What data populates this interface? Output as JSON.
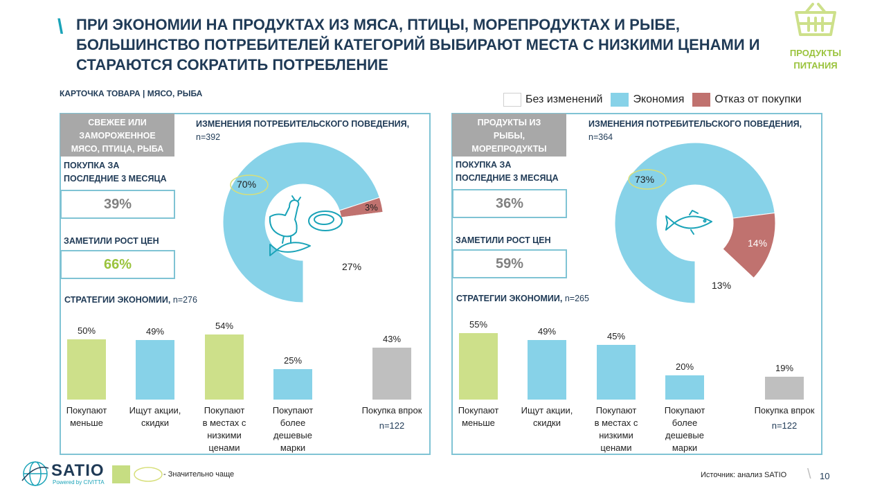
{
  "header": {
    "title_lines": [
      "ПРИ ЭКОНОМИИ НА ПРОДУКТАХ ИЗ МЯСА, ПТИЦЫ, МОРЕПРОДУКТАХ И РЫБЕ,",
      "БОЛЬШИНСТВО ПОТРЕБИТЕЛЕЙ КАТЕГОРИЙ ВЫБИРАЮТ МЕСТА С НИЗКИМИ ЦЕНАМИ И",
      "СТАРАЮТСЯ СОКРАТИТЬ ПОТРЕБЛЕНИЕ"
    ],
    "category_line1": "ПРОДУКТЫ",
    "category_line2": "ПИТАНИЯ",
    "subtitle": "КАРТОЧКА ТОВАРА | МЯСО, РЫБА"
  },
  "colors": {
    "accent": "#1aa3b8",
    "green": "#cde08a",
    "blue": "#87d2e8",
    "red": "#c0726f",
    "gray": "#bfbfbf",
    "title": "#1f3a56"
  },
  "legend": {
    "no_change": "Без изменений",
    "economy": "Экономия",
    "refuse": "Отказ от покупки"
  },
  "panels": [
    {
      "category_lines": [
        "СВЕЖЕЕ ИЛИ",
        "ЗАМОРОЖЕННОЕ",
        "МЯСО, ПТИЦА, РЫБА"
      ],
      "purchase_label_lines": [
        "ПОКУПКА ЗА",
        "ПОСЛЕДНИЕ 3 МЕСЯЦА"
      ],
      "purchase_value": "39%",
      "price_label": "ЗАМЕТИЛИ РОСТ ЦЕН",
      "price_value": "66%",
      "pie_title": "ИЗМЕНЕНИЯ ПОТРЕБИТЕЛЬСКОГО ПОВЕДЕНИЯ,",
      "pie_n": "n=392",
      "pie_labels": {
        "economy": "70%",
        "refuse": "3%",
        "no_change": "27%"
      },
      "strategies_title": "СТРАТЕГИИ ЭКОНОМИИ,",
      "strategies_n": "n=276",
      "bar_labels": [
        "50%",
        "49%",
        "54%",
        "25%",
        "43%"
      ],
      "bar_cats": [
        [
          "Покупают",
          "меньше"
        ],
        [
          "Ищут акции,",
          "скидки"
        ],
        [
          "Покупают",
          "в местах с",
          "низкими",
          "ценами"
        ],
        [
          "Покупают",
          "более",
          "дешевые",
          "марки"
        ],
        [
          "Покупка впрок"
        ]
      ],
      "extra_n": "n=122"
    },
    {
      "category_lines": [
        "ПРОДУКТЫ ИЗ",
        "РЫБЫ,",
        "МОРЕПРОДУКТЫ"
      ],
      "purchase_label_lines": [
        "ПОКУПКА ЗА",
        "ПОСЛЕДНИЕ 3 МЕСЯЦА"
      ],
      "purchase_value": "36%",
      "price_label": "ЗАМЕТИЛИ РОСТ ЦЕН",
      "price_value": "59%",
      "pie_title": "ИЗМЕНЕНИЯ ПОТРЕБИТЕЛЬСКОГО ПОВЕДЕНИЯ,",
      "pie_n": "n=364",
      "pie_labels": {
        "economy": "73%",
        "refuse": "14%",
        "no_change": "13%"
      },
      "strategies_title": "СТРАТЕГИИ ЭКОНОМИИ,",
      "strategies_n": "n=265",
      "bar_labels": [
        "55%",
        "49%",
        "45%",
        "20%",
        "19%"
      ],
      "bar_cats": [
        [
          "Покупают",
          "меньше"
        ],
        [
          "Ищут акции,",
          "скидки"
        ],
        [
          "Покупают",
          "в местах с",
          "низкими",
          "ценами"
        ],
        [
          "Покупают",
          "более",
          "дешевые",
          "марки"
        ],
        [
          "Покупка впрок"
        ]
      ],
      "extra_n": "n=122"
    }
  ],
  "chart_data": [
    {
      "type": "pie",
      "categories": [
        "Экономия",
        "Отказ от покупки",
        "Без изменений"
      ],
      "values": [
        70,
        3,
        27
      ]
    },
    {
      "type": "bar",
      "categories": [
        "Покупают меньше",
        "Ищут акции, скидки",
        "Покупают в местах с низкими ценами",
        "Покупают более дешевые марки",
        "Покупка впрок"
      ],
      "values": [
        50,
        49,
        54,
        25,
        43
      ],
      "highlight": [
        "green",
        "blue",
        "green",
        "blue",
        "gray"
      ]
    },
    {
      "type": "pie",
      "categories": [
        "Экономия",
        "Отказ от покупки",
        "Без изменений"
      ],
      "values": [
        73,
        14,
        13
      ]
    },
    {
      "type": "bar",
      "categories": [
        "Покупают меньше",
        "Ищут акции, скидки",
        "Покупают в местах с низкими ценами",
        "Покупают более дешевые марки",
        "Покупка впрок"
      ],
      "values": [
        55,
        49,
        45,
        20,
        19
      ],
      "highlight": [
        "green",
        "blue",
        "blue",
        "blue",
        "gray"
      ]
    }
  ],
  "footer": {
    "logo": "SATIO",
    "logo_sub": "Powered by CIVITTA",
    "legend_text": "- Значительно чаще",
    "source": "Источник: анализ SATIO",
    "page": "10"
  }
}
